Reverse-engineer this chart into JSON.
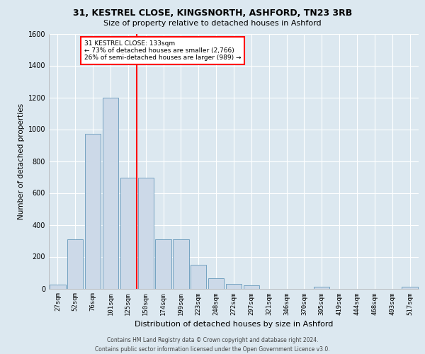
{
  "title_line1": "31, KESTREL CLOSE, KINGSNORTH, ASHFORD, TN23 3RB",
  "title_line2": "Size of property relative to detached houses in Ashford",
  "xlabel": "Distribution of detached houses by size in Ashford",
  "ylabel": "Number of detached properties",
  "footer_line1": "Contains HM Land Registry data © Crown copyright and database right 2024.",
  "footer_line2": "Contains public sector information licensed under the Open Government Licence v3.0.",
  "categories": [
    "27sqm",
    "52sqm",
    "76sqm",
    "101sqm",
    "125sqm",
    "150sqm",
    "174sqm",
    "199sqm",
    "223sqm",
    "248sqm",
    "272sqm",
    "297sqm",
    "321sqm",
    "346sqm",
    "370sqm",
    "395sqm",
    "419sqm",
    "444sqm",
    "468sqm",
    "493sqm",
    "517sqm"
  ],
  "values": [
    25,
    310,
    970,
    1200,
    695,
    695,
    310,
    310,
    150,
    65,
    30,
    20,
    0,
    0,
    0,
    10,
    0,
    0,
    0,
    0,
    10
  ],
  "bar_color": "#ccd9e8",
  "bar_edge_color": "#6699bb",
  "property_line_label": "31 KESTREL CLOSE: 133sqm",
  "annotation_line1": "← 73% of detached houses are smaller (2,766)",
  "annotation_line2": "26% of semi-detached houses are larger (989) →",
  "annotation_box_color": "white",
  "annotation_box_edge_color": "red",
  "vline_color": "red",
  "vline_x_idx": 4.5,
  "ylim": [
    0,
    1600
  ],
  "yticks": [
    0,
    200,
    400,
    600,
    800,
    1000,
    1200,
    1400,
    1600
  ],
  "background_color": "#dce8f0",
  "plot_bg_color": "#dce8f0",
  "grid_color": "#ffffff",
  "title1_fontsize": 9,
  "title2_fontsize": 8,
  "ylabel_fontsize": 7.5,
  "xlabel_fontsize": 8,
  "tick_fontsize": 7,
  "xtick_fontsize": 6.5,
  "footer_fontsize": 5.5
}
